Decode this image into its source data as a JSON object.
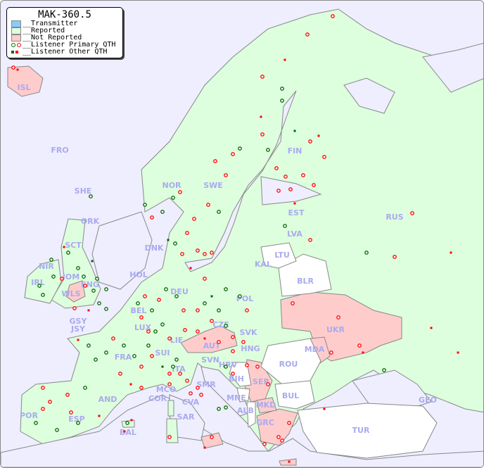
{
  "title": "MAK-360.5",
  "legend": {
    "transmitter": "__Transmitter",
    "reported": "__Reported",
    "not_reported": "__Not Reported",
    "primary": "__Listener Primary QTH",
    "other": "__Listener Other QTH"
  },
  "colors": {
    "sea": "#eeeeff",
    "reported": "#ddffdd",
    "not_reported": "#ffcccc",
    "transmitter": "#88ccff",
    "no_data": "#ffffff",
    "label": "#aaaaee",
    "listener_green": "#006600",
    "listener_red": "#ff0000"
  },
  "countries": [
    "ISL",
    "FRO",
    "SHE",
    "ORK",
    "NOR",
    "SWE",
    "FIN",
    "EST",
    "LVA",
    "LTU",
    "RUS",
    "DNK",
    "KAL",
    "BLR",
    "POL",
    "HOL",
    "BEL",
    "DEU",
    "LUX",
    "CZE",
    "SVK",
    "UKR",
    "IRL",
    "NIR",
    "SCT",
    "IOM",
    "ENG",
    "WLS",
    "GSY",
    "JSY",
    "FRA",
    "SUI",
    "LIE",
    "AUT",
    "HNG",
    "MDA",
    "ROU",
    "SVN",
    "HRV",
    "ITA",
    "BIH",
    "SER",
    "SMR",
    "MCO",
    "COR",
    "CVA",
    "MNE",
    "BUL",
    "GEO",
    "AND",
    "ALB",
    "MKD",
    "SAR",
    "POR",
    "ESP",
    "BAL",
    "GRC",
    "TUR"
  ]
}
